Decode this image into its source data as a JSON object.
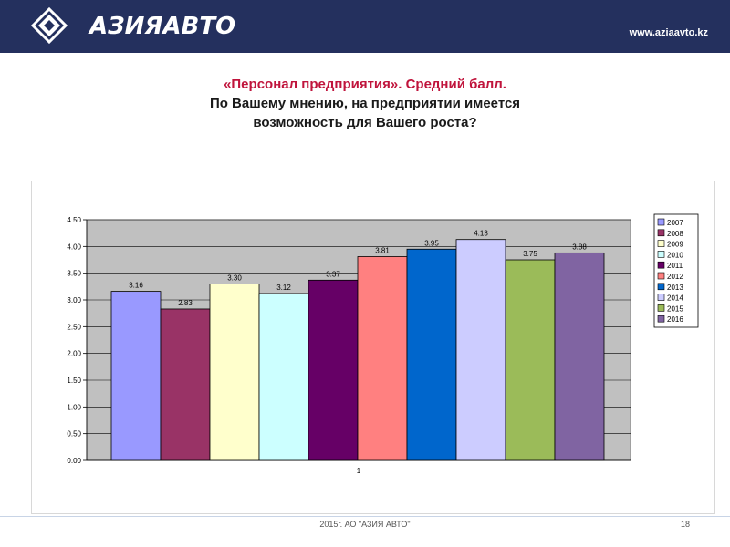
{
  "header": {
    "brand": "АЗИЯАВТО",
    "website": "www.aziaavto.kz"
  },
  "title": {
    "line1": "«Персонал предприятия». Средний балл.",
    "line2": "По Вашему мнению, на предприятии имеется",
    "line3": "возможность для Вашего роста?"
  },
  "chart_data": {
    "type": "bar",
    "categories": [
      "1"
    ],
    "ylim": [
      0,
      4.5
    ],
    "yticks": [
      "0.00",
      "0.50",
      "1.00",
      "1.50",
      "2.00",
      "2.50",
      "3.00",
      "3.50",
      "4.00",
      "4.50"
    ],
    "grid": true,
    "legend_position": "right",
    "series": [
      {
        "name": "2007",
        "value": 3.16,
        "label": "3.16",
        "color": "#9999ff"
      },
      {
        "name": "2008",
        "value": 2.83,
        "label": "2.83",
        "color": "#993366"
      },
      {
        "name": "2009",
        "value": 3.3,
        "label": "3.30",
        "color": "#ffffcc"
      },
      {
        "name": "2010",
        "value": 3.12,
        "label": "3.12",
        "color": "#ccffff"
      },
      {
        "name": "2011",
        "value": 3.37,
        "label": "3.37",
        "color": "#660066"
      },
      {
        "name": "2012",
        "value": 3.81,
        "label": "3.81",
        "color": "#ff8080"
      },
      {
        "name": "2013",
        "value": 3.95,
        "label": "3.95",
        "color": "#0066cc"
      },
      {
        "name": "2014",
        "value": 4.13,
        "label": "4.13",
        "color": "#ccccff"
      },
      {
        "name": "2015",
        "value": 3.75,
        "label": "3.75",
        "color": "#9bbb59"
      },
      {
        "name": "2016",
        "value": 3.88,
        "label": "3.88",
        "color": "#8064a2"
      }
    ]
  },
  "footer": {
    "text": "2015г. АО \"АЗИЯ АВТО\"",
    "page": "18"
  }
}
